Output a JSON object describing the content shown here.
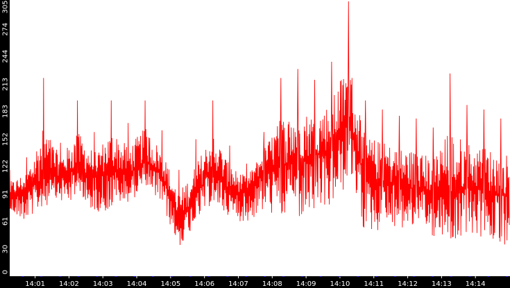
{
  "chart_data": {
    "type": "line",
    "colors": {
      "line": "#ff0000",
      "axis_band": "#000000",
      "tick_label": "#ffffff",
      "event_marks": "#0000cc",
      "background": "#ffffff"
    },
    "grid": false,
    "legend": "none",
    "y_ticks": [
      "0",
      "30",
      "61",
      "91",
      "122",
      "152",
      "183",
      "213",
      "244",
      "274",
      "305"
    ],
    "y_tick_values": [
      0,
      30,
      61,
      91,
      122,
      152,
      183,
      213,
      244,
      274,
      305
    ],
    "ylim": [
      0,
      305
    ],
    "x_ticks": [
      "14:01",
      "14:02",
      "14:03",
      "14:04",
      "14:05",
      "14:06",
      "14:07",
      "14:08",
      "14:09",
      "14:10",
      "14:11",
      "14:12",
      "14:13",
      "14:14"
    ],
    "x_tick_minutes": [
      1,
      2,
      3,
      4,
      5,
      6,
      7,
      8,
      9,
      10,
      11,
      12,
      13,
      14
    ],
    "xlim_minutes": [
      0.25,
      15.0
    ],
    "series": [
      {
        "x_minutes": [
          0.25,
          0.75,
          1.25,
          1.75,
          2.25,
          2.75,
          3.25,
          3.75,
          4.25,
          4.75,
          5.25,
          5.75,
          6.25,
          6.75,
          7.25,
          7.75,
          8.25,
          8.75,
          9.25,
          9.75,
          10.25,
          10.75,
          11.25,
          11.75,
          12.25,
          12.75,
          13.25,
          13.75,
          14.25,
          14.75
        ],
        "values": [
          88,
          95,
          108,
          112,
          118,
          110,
          120,
          112,
          128,
          112,
          62,
          90,
          122,
          95,
          92,
          118,
          122,
          128,
          135,
          140,
          170,
          108,
          105,
          100,
          96,
          92,
          88,
          98,
          95,
          90
        ],
        "low": [
          68,
          62,
          78,
          82,
          80,
          72,
          70,
          82,
          95,
          78,
          32,
          58,
          82,
          62,
          60,
          72,
          65,
          62,
          68,
          78,
          100,
          48,
          50,
          52,
          50,
          42,
          38,
          45,
          42,
          32
        ],
        "high": [
          118,
          132,
          220,
          148,
          195,
          160,
          195,
          170,
          195,
          162,
          118,
          152,
          195,
          145,
          125,
          160,
          220,
          230,
          218,
          238,
          305,
          195,
          185,
          178,
          175,
          165,
          225,
          190,
          185,
          175
        ]
      }
    ]
  }
}
